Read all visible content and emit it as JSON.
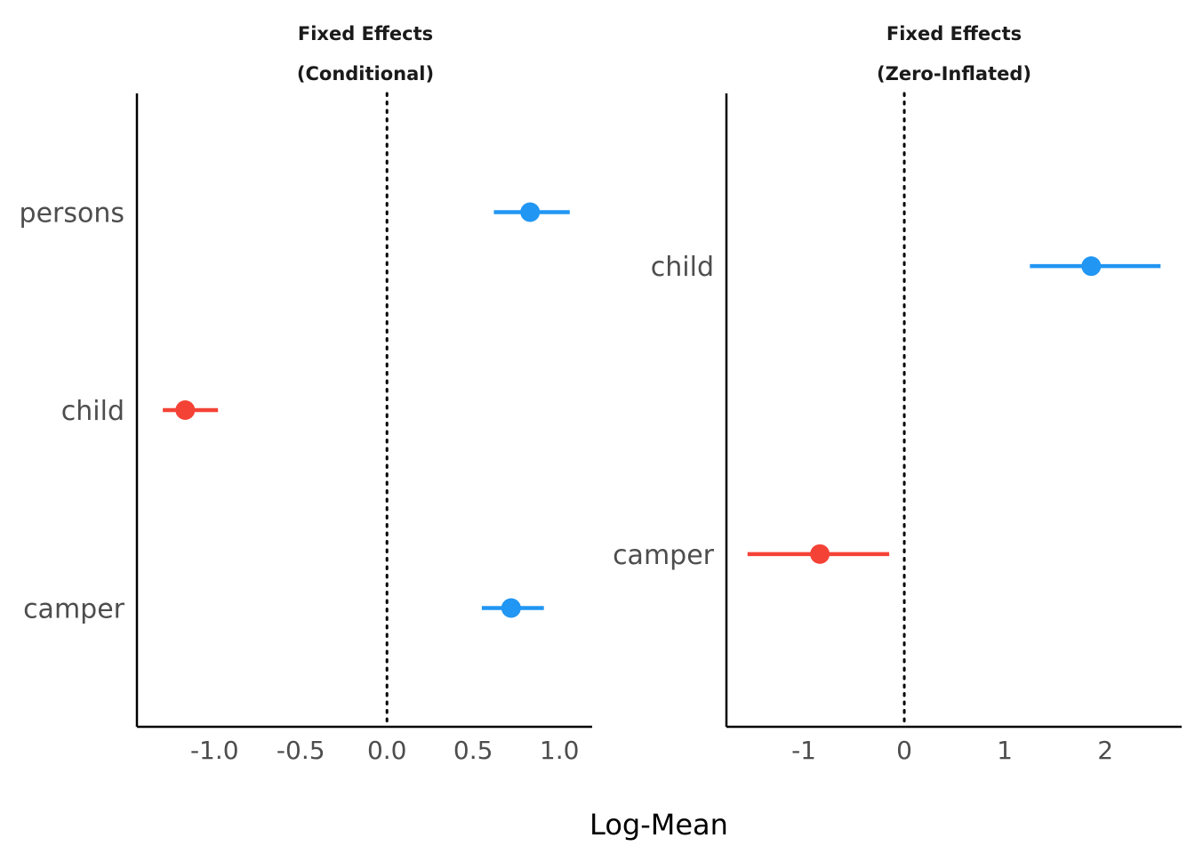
{
  "xlabel": "Log-Mean",
  "colors": {
    "positive": "#2196F3",
    "negative": "#F44336"
  },
  "chart_data": [
    {
      "type": "scatter",
      "title_line1": "Fixed Effects",
      "title_line2": "(Conditional)",
      "terms": [
        "persons",
        "child",
        "camper"
      ],
      "estimates": [
        0.83,
        -1.17,
        0.72
      ],
      "ci_low": [
        0.62,
        -1.3,
        0.55
      ],
      "ci_high": [
        1.06,
        -0.98,
        0.91
      ],
      "xlim": [
        -1.45,
        1.19
      ],
      "xticks": [
        -1.0,
        -0.5,
        0.0,
        0.5,
        1.0
      ],
      "xtick_labels": [
        "-1.0",
        "-0.5",
        "0.0",
        "0.5",
        "1.0"
      ],
      "reference_line": 0
    },
    {
      "type": "scatter",
      "title_line1": "Fixed Effects",
      "title_line2": "(Zero-Inflated)",
      "terms": [
        "child",
        "camper"
      ],
      "estimates": [
        1.86,
        -0.84
      ],
      "ci_low": [
        1.25,
        -1.56
      ],
      "ci_high": [
        2.55,
        -0.15
      ],
      "xlim": [
        -1.77,
        2.76
      ],
      "xticks": [
        -1,
        0,
        1,
        2
      ],
      "xtick_labels": [
        "-1",
        "0",
        "1",
        "2"
      ],
      "reference_line": 0
    }
  ]
}
